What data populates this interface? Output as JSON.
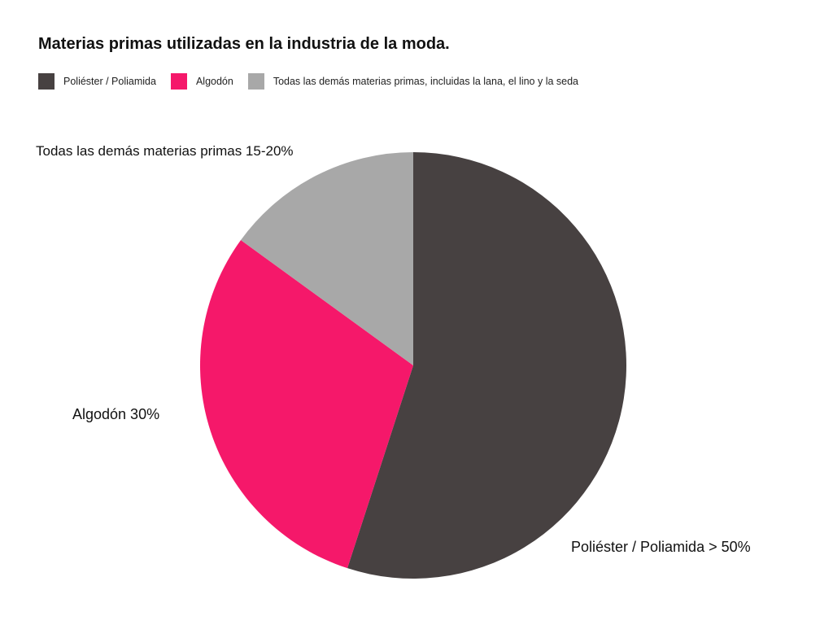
{
  "chart_data": {
    "type": "pie",
    "title": "Materias primas utilizadas en la industria de la moda.",
    "legend_position": "top-left",
    "slices": [
      {
        "name": "Poliéster / Poliamida",
        "value": 55,
        "label": "Poliéster / Poliamida > 50%",
        "color": "#474141"
      },
      {
        "name": "Algodón",
        "value": 30,
        "label": "Algodón 30%",
        "color": "#f5186a"
      },
      {
        "name": "Todas las demás materias primas, incluidas la lana, el lino y la seda",
        "value": 15,
        "label": "Todas las demás materias primas 15-20%",
        "color": "#a8a8a8"
      }
    ],
    "start": "top",
    "direction": "clockwise"
  }
}
